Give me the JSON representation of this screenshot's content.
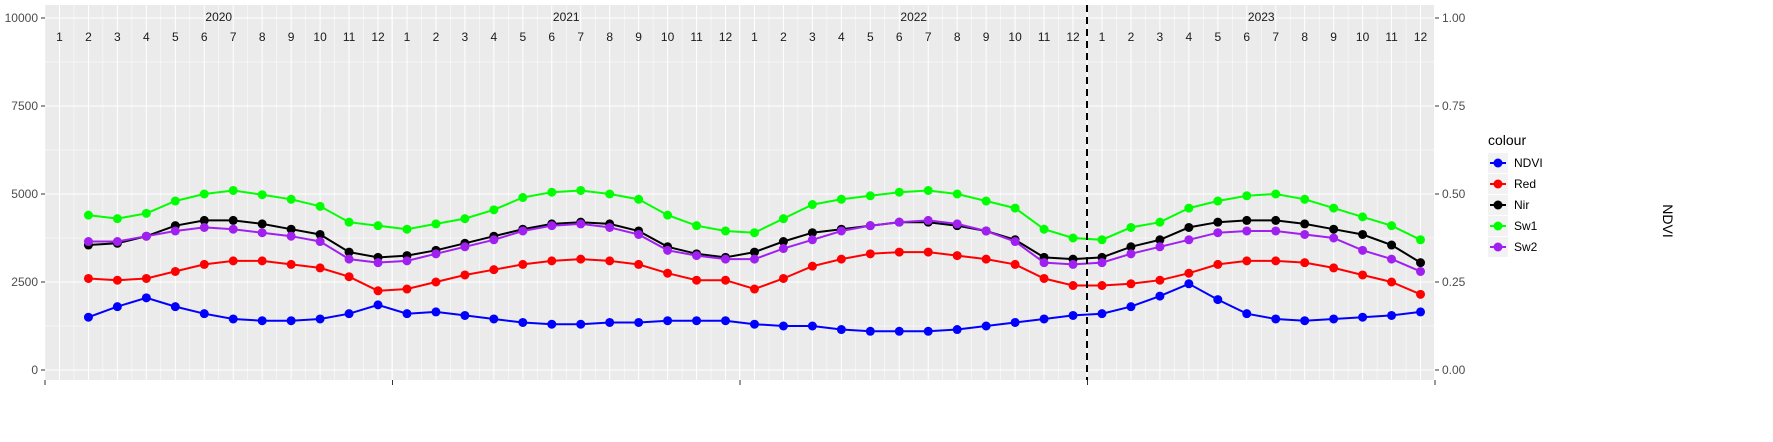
{
  "chart_data": {
    "type": "line",
    "title": "",
    "xlabel": "",
    "ylabel_left": "",
    "ylabel_right": "NDVI",
    "x_unit": "month",
    "xlim": [
      "2020-01",
      "2023-12"
    ],
    "ylim_left": [
      0,
      10000
    ],
    "ylim_right": [
      0,
      1
    ],
    "yticks_left": [
      "0",
      "2500",
      "5000",
      "7500",
      "10000"
    ],
    "yticks_right": [
      "0.00",
      "0.25",
      "0.50",
      "0.75",
      "1.00"
    ],
    "years": [
      "2020",
      "2021",
      "2022",
      "2023"
    ],
    "months": [
      "1",
      "2",
      "3",
      "4",
      "5",
      "6",
      "7",
      "8",
      "9",
      "10",
      "11",
      "12"
    ],
    "vline": "2023-01",
    "grid": true,
    "legend": {
      "title": "colour",
      "placement": "right",
      "entries": [
        {
          "name": "NDVI",
          "color": "#0000ff"
        },
        {
          "name": "Red",
          "color": "#ff0000"
        },
        {
          "name": "Nir",
          "color": "#000000"
        },
        {
          "name": "Sw1",
          "color": "#00ff00"
        },
        {
          "name": "Sw2",
          "color": "#a020f0"
        }
      ]
    },
    "series": [
      {
        "name": "Sw1",
        "color": "#00ff00",
        "x": [
          "2020-02",
          "2020-03",
          "2020-04",
          "2020-05",
          "2020-06",
          "2020-07",
          "2020-08",
          "2020-09",
          "2020-10",
          "2020-11",
          "2020-12",
          "2021-01",
          "2021-02",
          "2021-03",
          "2021-04",
          "2021-05",
          "2021-06",
          "2021-07",
          "2021-08",
          "2021-09",
          "2021-10",
          "2021-11",
          "2021-12",
          "2022-01",
          "2022-02",
          "2022-03",
          "2022-04",
          "2022-05",
          "2022-06",
          "2022-07",
          "2022-08",
          "2022-09",
          "2022-10",
          "2022-11",
          "2022-12",
          "2023-01",
          "2023-02",
          "2023-03",
          "2023-04",
          "2023-05",
          "2023-06",
          "2023-07",
          "2023-08",
          "2023-09",
          "2023-10",
          "2023-11",
          "2023-12"
        ],
        "values": [
          4400,
          4300,
          4450,
          4800,
          5000,
          5100,
          4980,
          4850,
          4650,
          4200,
          4100,
          4000,
          4150,
          4300,
          4550,
          4900,
          5050,
          5100,
          5000,
          4850,
          4400,
          4100,
          3950,
          3900,
          4300,
          4700,
          4850,
          4950,
          5050,
          5100,
          5000,
          4800,
          4600,
          4000,
          3750,
          3700,
          4050,
          4200,
          4600,
          4800,
          4950,
          5000,
          4850,
          4600,
          4350,
          4100,
          3700
        ]
      },
      {
        "name": "Nir",
        "color": "#000000",
        "x": [
          "2020-02",
          "2020-03",
          "2020-04",
          "2020-05",
          "2020-06",
          "2020-07",
          "2020-08",
          "2020-09",
          "2020-10",
          "2020-11",
          "2020-12",
          "2021-01",
          "2021-02",
          "2021-03",
          "2021-04",
          "2021-05",
          "2021-06",
          "2021-07",
          "2021-08",
          "2021-09",
          "2021-10",
          "2021-11",
          "2021-12",
          "2022-01",
          "2022-02",
          "2022-03",
          "2022-04",
          "2022-05",
          "2022-06",
          "2022-07",
          "2022-08",
          "2022-09",
          "2022-10",
          "2022-11",
          "2022-12",
          "2023-01",
          "2023-02",
          "2023-03",
          "2023-04",
          "2023-05",
          "2023-06",
          "2023-07",
          "2023-08",
          "2023-09",
          "2023-10",
          "2023-11",
          "2023-12"
        ],
        "values": [
          3550,
          3600,
          3800,
          4100,
          4250,
          4250,
          4150,
          4000,
          3850,
          3350,
          3200,
          3250,
          3400,
          3600,
          3800,
          4000,
          4150,
          4200,
          4150,
          3950,
          3500,
          3300,
          3200,
          3350,
          3650,
          3900,
          4000,
          4100,
          4200,
          4200,
          4100,
          3950,
          3700,
          3200,
          3150,
          3200,
          3500,
          3700,
          4050,
          4200,
          4250,
          4250,
          4150,
          4000,
          3850,
          3550,
          3050
        ]
      },
      {
        "name": "Sw2",
        "color": "#a020f0",
        "x": [
          "2020-02",
          "2020-03",
          "2020-04",
          "2020-05",
          "2020-06",
          "2020-07",
          "2020-08",
          "2020-09",
          "2020-10",
          "2020-11",
          "2020-12",
          "2021-01",
          "2021-02",
          "2021-03",
          "2021-04",
          "2021-05",
          "2021-06",
          "2021-07",
          "2021-08",
          "2021-09",
          "2021-10",
          "2021-11",
          "2021-12",
          "2022-01",
          "2022-02",
          "2022-03",
          "2022-04",
          "2022-05",
          "2022-06",
          "2022-07",
          "2022-08",
          "2022-09",
          "2022-10",
          "2022-11",
          "2022-12",
          "2023-01",
          "2023-02",
          "2023-03",
          "2023-04",
          "2023-05",
          "2023-06",
          "2023-07",
          "2023-08",
          "2023-09",
          "2023-10",
          "2023-11",
          "2023-12"
        ],
        "values": [
          3650,
          3650,
          3800,
          3950,
          4050,
          4000,
          3900,
          3800,
          3650,
          3150,
          3050,
          3100,
          3300,
          3500,
          3700,
          3950,
          4100,
          4150,
          4050,
          3850,
          3400,
          3250,
          3150,
          3150,
          3450,
          3700,
          3950,
          4100,
          4200,
          4250,
          4150,
          3950,
          3650,
          3050,
          3000,
          3050,
          3300,
          3500,
          3700,
          3900,
          3950,
          3950,
          3850,
          3750,
          3400,
          3150,
          2800
        ]
      },
      {
        "name": "Red",
        "color": "#ff0000",
        "x": [
          "2020-02",
          "2020-03",
          "2020-04",
          "2020-05",
          "2020-06",
          "2020-07",
          "2020-08",
          "2020-09",
          "2020-10",
          "2020-11",
          "2020-12",
          "2021-01",
          "2021-02",
          "2021-03",
          "2021-04",
          "2021-05",
          "2021-06",
          "2021-07",
          "2021-08",
          "2021-09",
          "2021-10",
          "2021-11",
          "2021-12",
          "2022-01",
          "2022-02",
          "2022-03",
          "2022-04",
          "2022-05",
          "2022-06",
          "2022-07",
          "2022-08",
          "2022-09",
          "2022-10",
          "2022-11",
          "2022-12",
          "2023-01",
          "2023-02",
          "2023-03",
          "2023-04",
          "2023-05",
          "2023-06",
          "2023-07",
          "2023-08",
          "2023-09",
          "2023-10",
          "2023-11",
          "2023-12"
        ],
        "values": [
          2600,
          2550,
          2600,
          2800,
          3000,
          3100,
          3100,
          3000,
          2900,
          2650,
          2250,
          2300,
          2500,
          2700,
          2850,
          3000,
          3100,
          3150,
          3100,
          3000,
          2750,
          2550,
          2550,
          2300,
          2600,
          2950,
          3150,
          3300,
          3350,
          3350,
          3250,
          3150,
          3000,
          2600,
          2400,
          2400,
          2450,
          2550,
          2750,
          3000,
          3100,
          3100,
          3050,
          2900,
          2700,
          2500,
          2150
        ]
      },
      {
        "name": "NDVI",
        "color": "#0000ff",
        "x": [
          "2020-02",
          "2020-03",
          "2020-04",
          "2020-05",
          "2020-06",
          "2020-07",
          "2020-08",
          "2020-09",
          "2020-10",
          "2020-11",
          "2020-12",
          "2021-01",
          "2021-02",
          "2021-03",
          "2021-04",
          "2021-05",
          "2021-06",
          "2021-07",
          "2021-08",
          "2021-09",
          "2021-10",
          "2021-11",
          "2021-12",
          "2022-01",
          "2022-02",
          "2022-03",
          "2022-04",
          "2022-05",
          "2022-06",
          "2022-07",
          "2022-08",
          "2022-09",
          "2022-10",
          "2022-11",
          "2022-12",
          "2023-01",
          "2023-02",
          "2023-03",
          "2023-04",
          "2023-05",
          "2023-06",
          "2023-07",
          "2023-08",
          "2023-09",
          "2023-10",
          "2023-11",
          "2023-12"
        ],
        "values": [
          0.15,
          0.18,
          0.205,
          0.18,
          0.16,
          0.145,
          0.14,
          0.14,
          0.145,
          0.16,
          0.185,
          0.16,
          0.165,
          0.155,
          0.145,
          0.135,
          0.13,
          0.13,
          0.135,
          0.135,
          0.14,
          0.14,
          0.14,
          0.13,
          0.125,
          0.125,
          0.115,
          0.11,
          0.11,
          0.11,
          0.115,
          0.125,
          0.135,
          0.145,
          0.155,
          0.16,
          0.18,
          0.21,
          0.245,
          0.2,
          0.16,
          0.145,
          0.14,
          0.145,
          0.15,
          0.155,
          0.165
        ]
      }
    ]
  }
}
